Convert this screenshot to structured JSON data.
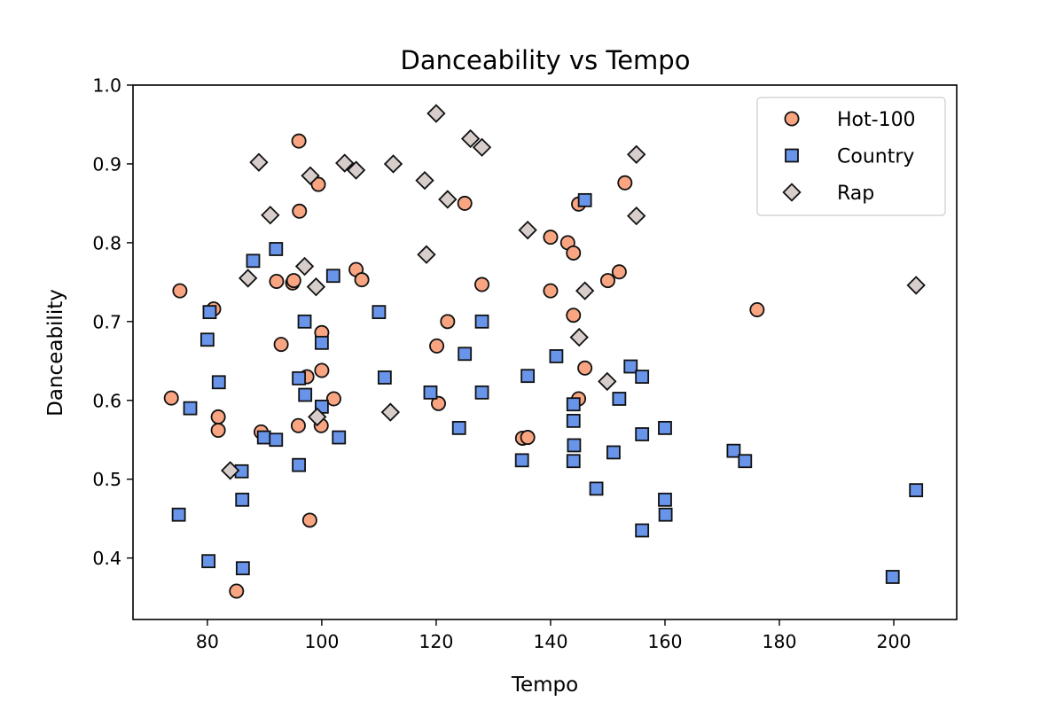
{
  "chart_data": {
    "type": "scatter",
    "title": "Danceability vs Tempo",
    "xlabel": "Tempo",
    "ylabel": "Danceability",
    "xlim": [
      67,
      211
    ],
    "ylim": [
      0.322,
      1.0
    ],
    "xticks": [
      80,
      100,
      120,
      140,
      160,
      180,
      200
    ],
    "yticks": [
      0.4,
      0.5,
      0.6,
      0.7,
      0.8,
      0.9,
      1.0
    ],
    "grid": false,
    "legend_position": "top-right",
    "series": [
      {
        "name": "Hot-100",
        "marker": "circle",
        "color": "#f9a582",
        "edge_color": "#111111",
        "points": [
          [
            73.7,
            0.603
          ],
          [
            75.2,
            0.739
          ],
          [
            81.1,
            0.716
          ],
          [
            81.9,
            0.579
          ],
          [
            81.9,
            0.562
          ],
          [
            85.1,
            0.358
          ],
          [
            89.4,
            0.56
          ],
          [
            92.1,
            0.751
          ],
          [
            92.9,
            0.671
          ],
          [
            94.9,
            0.749
          ],
          [
            95.1,
            0.752
          ],
          [
            95.9,
            0.568
          ],
          [
            96.0,
            0.929
          ],
          [
            96.1,
            0.84
          ],
          [
            97.4,
            0.63
          ],
          [
            97.9,
            0.448
          ],
          [
            99.4,
            0.874
          ],
          [
            99.9,
            0.568
          ],
          [
            100.0,
            0.686
          ],
          [
            100.0,
            0.638
          ],
          [
            102.1,
            0.602
          ],
          [
            106.0,
            0.766
          ],
          [
            107.0,
            0.753
          ],
          [
            120.1,
            0.669
          ],
          [
            120.4,
            0.596
          ],
          [
            122.0,
            0.7
          ],
          [
            125.0,
            0.85
          ],
          [
            128.0,
            0.747
          ],
          [
            135.1,
            0.552
          ],
          [
            136.0,
            0.553
          ],
          [
            140.0,
            0.807
          ],
          [
            140.0,
            0.739
          ],
          [
            143.0,
            0.8
          ],
          [
            144.0,
            0.787
          ],
          [
            144.0,
            0.708
          ],
          [
            144.9,
            0.602
          ],
          [
            144.9,
            0.849
          ],
          [
            146.0,
            0.641
          ],
          [
            150.0,
            0.752
          ],
          [
            152.0,
            0.763
          ],
          [
            153.0,
            0.876
          ],
          [
            176.1,
            0.715
          ]
        ]
      },
      {
        "name": "Country",
        "marker": "square",
        "color": "#6894ea",
        "edge_color": "#111111",
        "points": [
          [
            75.0,
            0.455
          ],
          [
            77.0,
            0.59
          ],
          [
            80.0,
            0.677
          ],
          [
            80.4,
            0.712
          ],
          [
            80.2,
            0.396
          ],
          [
            82.0,
            0.623
          ],
          [
            86.0,
            0.51
          ],
          [
            86.1,
            0.474
          ],
          [
            86.2,
            0.387
          ],
          [
            88.0,
            0.777
          ],
          [
            89.9,
            0.553
          ],
          [
            92.0,
            0.792
          ],
          [
            92.0,
            0.55
          ],
          [
            96.0,
            0.628
          ],
          [
            96.0,
            0.518
          ],
          [
            97.0,
            0.7
          ],
          [
            97.1,
            0.607
          ],
          [
            100.0,
            0.673
          ],
          [
            100.0,
            0.592
          ],
          [
            102.0,
            0.758
          ],
          [
            103.0,
            0.553
          ],
          [
            110.0,
            0.712
          ],
          [
            111.0,
            0.629
          ],
          [
            119.0,
            0.61
          ],
          [
            124.0,
            0.565
          ],
          [
            125.0,
            0.659
          ],
          [
            128.0,
            0.7
          ],
          [
            128.0,
            0.61
          ],
          [
            135.0,
            0.524
          ],
          [
            136.0,
            0.631
          ],
          [
            141.0,
            0.656
          ],
          [
            144.0,
            0.595
          ],
          [
            144.0,
            0.574
          ],
          [
            144.1,
            0.543
          ],
          [
            144.0,
            0.523
          ],
          [
            146.0,
            0.854
          ],
          [
            148.0,
            0.488
          ],
          [
            151.0,
            0.534
          ],
          [
            152.0,
            0.602
          ],
          [
            154.0,
            0.643
          ],
          [
            156.0,
            0.63
          ],
          [
            156.0,
            0.557
          ],
          [
            156.0,
            0.435
          ],
          [
            160.0,
            0.565
          ],
          [
            160.0,
            0.474
          ],
          [
            160.1,
            0.455
          ],
          [
            172.0,
            0.536
          ],
          [
            174.0,
            0.523
          ],
          [
            199.8,
            0.376
          ],
          [
            203.9,
            0.486
          ]
        ]
      },
      {
        "name": "Rap",
        "marker": "diamond",
        "color": "#d7cecc",
        "edge_color": "#111111",
        "points": [
          [
            84.0,
            0.511
          ],
          [
            87.1,
            0.755
          ],
          [
            89.0,
            0.902
          ],
          [
            91.0,
            0.835
          ],
          [
            97.0,
            0.77
          ],
          [
            98.0,
            0.885
          ],
          [
            99.0,
            0.744
          ],
          [
            99.2,
            0.579
          ],
          [
            104.0,
            0.901
          ],
          [
            106.0,
            0.892
          ],
          [
            112.0,
            0.585
          ],
          [
            112.5,
            0.9
          ],
          [
            118.0,
            0.879
          ],
          [
            118.3,
            0.785
          ],
          [
            120.0,
            0.964
          ],
          [
            122.0,
            0.855
          ],
          [
            126.0,
            0.932
          ],
          [
            128.0,
            0.921
          ],
          [
            136.0,
            0.816
          ],
          [
            145.0,
            0.68
          ],
          [
            146.0,
            0.739
          ],
          [
            149.9,
            0.624
          ],
          [
            155.0,
            0.912
          ],
          [
            155.0,
            0.834
          ],
          [
            203.9,
            0.746
          ]
        ]
      }
    ]
  }
}
